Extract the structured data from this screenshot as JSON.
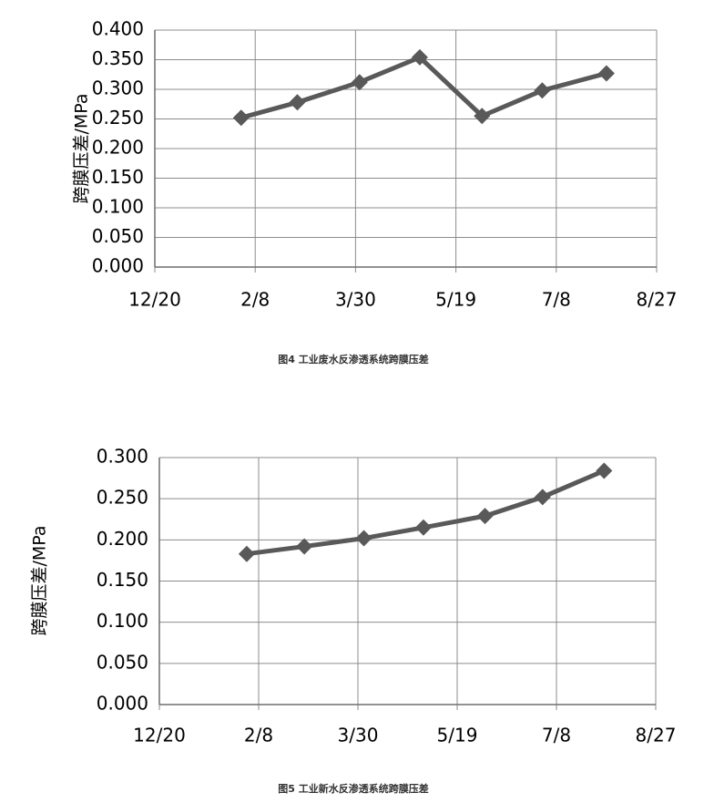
{
  "chart_data": [
    {
      "type": "line",
      "caption": "图4 工业废水反渗透系统跨膜压差",
      "y_label": "跨膜压差/MPa",
      "color": "#595959",
      "grid": true,
      "x": [
        43,
        71,
        102,
        132,
        163,
        193,
        225
      ],
      "values": [
        0.252,
        0.278,
        0.312,
        0.354,
        0.255,
        0.298,
        0.327
      ],
      "xlim": [
        0,
        250
      ],
      "xticks": [
        {
          "value": 0,
          "label": "12/20"
        },
        {
          "value": 50,
          "label": "2/8"
        },
        {
          "value": 100,
          "label": "3/30"
        },
        {
          "value": 150,
          "label": "5/19"
        },
        {
          "value": 200,
          "label": "7/8"
        },
        {
          "value": 250,
          "label": "8/27"
        }
      ],
      "ylim": [
        0,
        0.4
      ],
      "yticks": [
        {
          "value": 0,
          "label": "0.000"
        },
        {
          "value": 0.05,
          "label": "0.050"
        },
        {
          "value": 0.1,
          "label": "0.100"
        },
        {
          "value": 0.15,
          "label": "0.150"
        },
        {
          "value": 0.2,
          "label": "0.200"
        },
        {
          "value": 0.25,
          "label": "0.250"
        },
        {
          "value": 0.3,
          "label": "0.300"
        },
        {
          "value": 0.35,
          "label": "0.350"
        },
        {
          "value": 0.4,
          "label": "0.400"
        }
      ]
    },
    {
      "type": "line",
      "caption": "图5 工业新水反渗透系统跨膜压差",
      "y_label": "跨膜压差/MPa",
      "color": "#595959",
      "grid": true,
      "x": [
        44,
        73,
        103,
        133,
        164,
        193,
        224
      ],
      "values": [
        0.183,
        0.192,
        0.202,
        0.215,
        0.229,
        0.252,
        0.284
      ],
      "xlim": [
        0,
        250
      ],
      "xticks": [
        {
          "value": 0,
          "label": "12/20"
        },
        {
          "value": 50,
          "label": "2/8"
        },
        {
          "value": 100,
          "label": "3/30"
        },
        {
          "value": 150,
          "label": "5/19"
        },
        {
          "value": 200,
          "label": "7/8"
        },
        {
          "value": 250,
          "label": "8/27"
        }
      ],
      "ylim": [
        0,
        0.3
      ],
      "yticks": [
        {
          "value": 0,
          "label": "0.000"
        },
        {
          "value": 0.05,
          "label": "0.050"
        },
        {
          "value": 0.1,
          "label": "0.100"
        },
        {
          "value": 0.15,
          "label": "0.150"
        },
        {
          "value": 0.2,
          "label": "0.200"
        },
        {
          "value": 0.25,
          "label": "0.250"
        },
        {
          "value": 0.3,
          "label": "0.300"
        }
      ]
    }
  ]
}
